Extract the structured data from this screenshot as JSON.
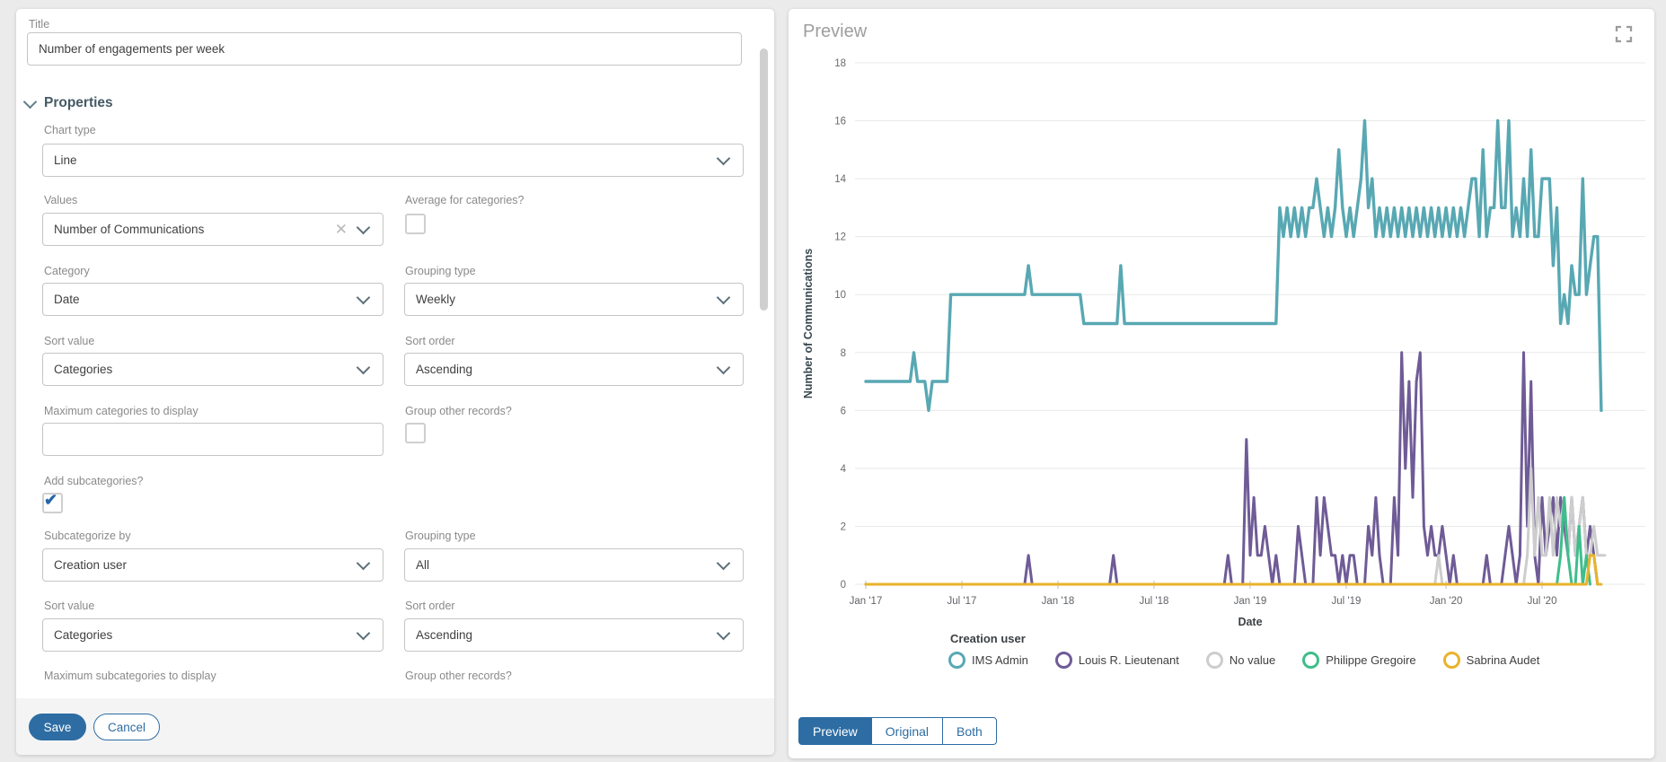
{
  "left_panel": {
    "title_field": {
      "label": "Title",
      "value": "Number of engagements per week"
    },
    "properties_section_label": "Properties",
    "chart_type": {
      "label": "Chart type",
      "value": "Line"
    },
    "values": {
      "label": "Values",
      "value": "Number of Communications"
    },
    "average_for_categories": {
      "label": "Average for categories?",
      "checked": false
    },
    "category": {
      "label": "Category",
      "value": "Date"
    },
    "grouping_type": {
      "label": "Grouping type",
      "value": "Weekly"
    },
    "sort_value": {
      "label": "Sort value",
      "value": "Categories"
    },
    "sort_order": {
      "label": "Sort order",
      "value": "Ascending"
    },
    "max_categories": {
      "label": "Maximum categories to display",
      "value": ""
    },
    "group_other_records": {
      "label": "Group other records?",
      "checked": false
    },
    "add_subcategories": {
      "label": "Add subcategories?",
      "checked": true
    },
    "subcategorize_by": {
      "label": "Subcategorize by",
      "value": "Creation user"
    },
    "sub_grouping_type": {
      "label": "Grouping type",
      "value": "All"
    },
    "sub_sort_value": {
      "label": "Sort value",
      "value": "Categories"
    },
    "sub_sort_order": {
      "label": "Sort order",
      "value": "Ascending"
    },
    "max_subcategories": {
      "label": "Maximum subcategories to display"
    },
    "sub_group_other_records": {
      "label": "Group other records?"
    },
    "save_label": "Save",
    "cancel_label": "Cancel"
  },
  "preview_panel": {
    "title": "Preview",
    "tabs": {
      "active": "Preview",
      "items": [
        "Preview",
        "Original",
        "Both"
      ]
    }
  },
  "chart_data": {
    "type": "line",
    "xlabel": "Date",
    "ylabel": "Number of Communications",
    "ylim": [
      0,
      18
    ],
    "y_ticks": [
      0,
      2,
      4,
      6,
      8,
      10,
      12,
      14,
      16,
      18
    ],
    "x_unit": "weeks since Jan 2017",
    "x_range_weeks": [
      0,
      211
    ],
    "grid": true,
    "legend_title": "Creation user",
    "legend_position": "bottom",
    "x_ticks": [
      {
        "week": 0,
        "label": "Jan '17"
      },
      {
        "week": 26,
        "label": "Jul '17"
      },
      {
        "week": 52,
        "label": "Jan '18"
      },
      {
        "week": 78,
        "label": "Jul '18"
      },
      {
        "week": 104,
        "label": "Jan '19"
      },
      {
        "week": 130,
        "label": "Jul '19"
      },
      {
        "week": 157,
        "label": "Jan '20"
      },
      {
        "week": 183,
        "label": "Jul '20"
      }
    ],
    "series": [
      {
        "name": "IMS Admin",
        "color": "#58a8b3",
        "points": [
          [
            0,
            7
          ],
          [
            12,
            7
          ],
          [
            13,
            8
          ],
          [
            14,
            7
          ],
          [
            16,
            7
          ],
          [
            17,
            6
          ],
          [
            18,
            7
          ],
          [
            22,
            7
          ],
          [
            23,
            10
          ],
          [
            43,
            10
          ],
          [
            44,
            11
          ],
          [
            45,
            10
          ],
          [
            58,
            10
          ],
          [
            59,
            9
          ],
          [
            68,
            9
          ],
          [
            69,
            11
          ],
          [
            70,
            9
          ],
          [
            111,
            9
          ],
          [
            112,
            13
          ],
          [
            113,
            12
          ],
          [
            114,
            13
          ],
          [
            115,
            12
          ],
          [
            116,
            13
          ],
          [
            117,
            12
          ],
          [
            118,
            13
          ],
          [
            119,
            12
          ],
          [
            120,
            13
          ],
          [
            121,
            13
          ],
          [
            122,
            14
          ],
          [
            123,
            13
          ],
          [
            124,
            12
          ],
          [
            125,
            13
          ],
          [
            126,
            12
          ],
          [
            127,
            13
          ],
          [
            128,
            15
          ],
          [
            129,
            13
          ],
          [
            130,
            12
          ],
          [
            131,
            13
          ],
          [
            132,
            12
          ],
          [
            133,
            13
          ],
          [
            134,
            14
          ],
          [
            135,
            16
          ],
          [
            136,
            13
          ],
          [
            137,
            14
          ],
          [
            138,
            12
          ],
          [
            139,
            13
          ],
          [
            140,
            12
          ],
          [
            141,
            13
          ],
          [
            142,
            12
          ],
          [
            143,
            13
          ],
          [
            144,
            12
          ],
          [
            145,
            13
          ],
          [
            146,
            12
          ],
          [
            147,
            13
          ],
          [
            148,
            12
          ],
          [
            149,
            13
          ],
          [
            150,
            12
          ],
          [
            151,
            13
          ],
          [
            152,
            12
          ],
          [
            153,
            13
          ],
          [
            154,
            12
          ],
          [
            155,
            13
          ],
          [
            156,
            12
          ],
          [
            157,
            13
          ],
          [
            158,
            12
          ],
          [
            159,
            13
          ],
          [
            160,
            12
          ],
          [
            161,
            13
          ],
          [
            162,
            12
          ],
          [
            163,
            13
          ],
          [
            164,
            14
          ],
          [
            165,
            14
          ],
          [
            166,
            12
          ],
          [
            167,
            15
          ],
          [
            168,
            12
          ],
          [
            169,
            13
          ],
          [
            170,
            13
          ],
          [
            171,
            16
          ],
          [
            172,
            13
          ],
          [
            173,
            13
          ],
          [
            174,
            16
          ],
          [
            175,
            12
          ],
          [
            176,
            13
          ],
          [
            177,
            12
          ],
          [
            178,
            14
          ],
          [
            179,
            12
          ],
          [
            180,
            15
          ],
          [
            181,
            12
          ],
          [
            182,
            12
          ],
          [
            183,
            14
          ],
          [
            184,
            14
          ],
          [
            185,
            14
          ],
          [
            186,
            11
          ],
          [
            187,
            13
          ],
          [
            188,
            9
          ],
          [
            189,
            10
          ],
          [
            190,
            9
          ],
          [
            191,
            11
          ],
          [
            192,
            10
          ],
          [
            193,
            10
          ],
          [
            194,
            14
          ],
          [
            195,
            10
          ],
          [
            196,
            11
          ],
          [
            197,
            12
          ],
          [
            198,
            12
          ],
          [
            199,
            6
          ]
        ]
      },
      {
        "name": "Louis R. Lieutenant",
        "color": "#6f5b96",
        "points": [
          [
            0,
            0
          ],
          [
            43,
            0
          ],
          [
            44,
            1
          ],
          [
            45,
            0
          ],
          [
            66,
            0
          ],
          [
            67,
            1
          ],
          [
            68,
            0
          ],
          [
            97,
            0
          ],
          [
            98,
            1
          ],
          [
            99,
            0
          ],
          [
            102,
            0
          ],
          [
            103,
            5
          ],
          [
            104,
            1
          ],
          [
            105,
            3
          ],
          [
            106,
            1
          ],
          [
            107,
            1
          ],
          [
            108,
            2
          ],
          [
            109,
            1
          ],
          [
            110,
            0
          ],
          [
            111,
            1
          ],
          [
            112,
            0
          ],
          [
            116,
            0
          ],
          [
            117,
            2
          ],
          [
            118,
            1
          ],
          [
            119,
            0
          ],
          [
            121,
            0
          ],
          [
            122,
            3
          ],
          [
            123,
            1
          ],
          [
            124,
            3
          ],
          [
            125,
            2
          ],
          [
            126,
            1
          ],
          [
            127,
            1
          ],
          [
            128,
            0
          ],
          [
            129,
            1
          ],
          [
            130,
            0
          ],
          [
            131,
            1
          ],
          [
            132,
            1
          ],
          [
            133,
            0
          ],
          [
            135,
            0
          ],
          [
            136,
            2
          ],
          [
            137,
            1
          ],
          [
            138,
            3
          ],
          [
            139,
            1
          ],
          [
            140,
            0
          ],
          [
            142,
            0
          ],
          [
            143,
            3
          ],
          [
            144,
            1
          ],
          [
            145,
            8
          ],
          [
            146,
            4
          ],
          [
            147,
            7
          ],
          [
            148,
            3
          ],
          [
            149,
            7
          ],
          [
            150,
            8
          ],
          [
            151,
            2
          ],
          [
            152,
            1
          ],
          [
            153,
            2
          ],
          [
            154,
            1
          ],
          [
            155,
            1
          ],
          [
            156,
            2
          ],
          [
            157,
            1
          ],
          [
            158,
            0
          ],
          [
            159,
            1
          ],
          [
            160,
            0
          ],
          [
            167,
            0
          ],
          [
            168,
            1
          ],
          [
            169,
            0
          ],
          [
            172,
            0
          ],
          [
            173,
            1
          ],
          [
            174,
            2
          ],
          [
            175,
            1
          ],
          [
            176,
            0
          ],
          [
            177,
            1
          ],
          [
            178,
            8
          ],
          [
            179,
            2
          ],
          [
            180,
            7
          ],
          [
            181,
            1
          ],
          [
            182,
            0
          ],
          [
            183,
            3
          ],
          [
            184,
            1
          ],
          [
            185,
            2
          ],
          [
            186,
            3
          ],
          [
            187,
            1
          ],
          [
            188,
            3
          ],
          [
            189,
            2
          ],
          [
            190,
            1
          ],
          [
            191,
            3
          ],
          [
            192,
            1
          ],
          [
            193,
            2
          ],
          [
            194,
            3
          ],
          [
            195,
            1
          ],
          [
            196,
            2
          ],
          [
            197,
            1
          ],
          [
            198,
            0
          ]
        ]
      },
      {
        "name": "No value",
        "color": "#cdcdcd",
        "points": [
          [
            0,
            0
          ],
          [
            154,
            0
          ],
          [
            155,
            1
          ],
          [
            156,
            0
          ],
          [
            178,
            0
          ],
          [
            179,
            1
          ],
          [
            180,
            4
          ],
          [
            181,
            1
          ],
          [
            182,
            3
          ],
          [
            183,
            1
          ],
          [
            184,
            1
          ],
          [
            185,
            3
          ],
          [
            186,
            1
          ],
          [
            187,
            3
          ],
          [
            188,
            2
          ],
          [
            189,
            3
          ],
          [
            190,
            1
          ],
          [
            191,
            3
          ],
          [
            192,
            1
          ],
          [
            193,
            2
          ],
          [
            194,
            3
          ],
          [
            195,
            1
          ],
          [
            196,
            1
          ],
          [
            197,
            2
          ],
          [
            198,
            1
          ],
          [
            200,
            1
          ]
        ]
      },
      {
        "name": "Philippe Gregoire",
        "color": "#3fbd8b",
        "points": [
          [
            0,
            0
          ],
          [
            187,
            0
          ],
          [
            188,
            1
          ],
          [
            189,
            3
          ],
          [
            190,
            1
          ],
          [
            191,
            0
          ],
          [
            192,
            0
          ],
          [
            193,
            2
          ],
          [
            194,
            0
          ],
          [
            195,
            1
          ],
          [
            196,
            0
          ]
        ]
      },
      {
        "name": "Sabrina Audet",
        "color": "#e9b32a",
        "points": [
          [
            0,
            0
          ],
          [
            195,
            0
          ],
          [
            196,
            1
          ],
          [
            197,
            1
          ],
          [
            198,
            0
          ],
          [
            199,
            0
          ]
        ]
      }
    ]
  }
}
